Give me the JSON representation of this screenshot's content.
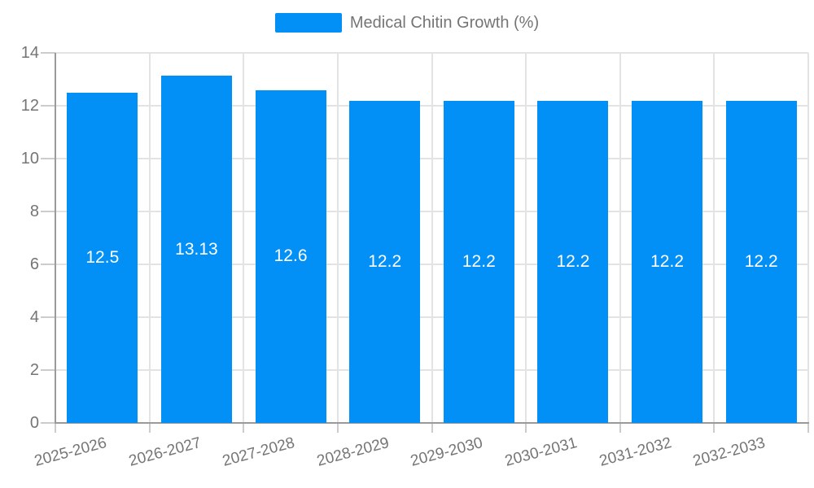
{
  "legend": {
    "label": "Medical Chitin Growth (%)"
  },
  "colors": {
    "bar": "#0290f7",
    "grid": "#e3e3e3",
    "axis": "#9a9a9a",
    "tick": "#cccccc",
    "tick_label": "#757575",
    "data_label": "#ffffff",
    "background": "#ffffff"
  },
  "chart_data": {
    "type": "bar",
    "title": "Medical Chitin Growth (%)",
    "categories": [
      "2025-2026",
      "2026-2027",
      "2027-2028",
      "2028-2029",
      "2029-2030",
      "2030-2031",
      "2031-2032",
      "2032-2033"
    ],
    "series": [
      {
        "name": "Medical Chitin Growth (%)",
        "color": "#0290f7",
        "values": [
          12.5,
          13.13,
          12.6,
          12.2,
          12.2,
          12.2,
          12.2,
          12.2
        ],
        "labels": [
          "12.5",
          "13.13",
          "12.6",
          "12.2",
          "12.2",
          "12.2",
          "12.2",
          "12.2"
        ]
      }
    ],
    "xlabel": "",
    "ylabel": "",
    "ylim": [
      0,
      14
    ],
    "yticks": [
      0,
      2,
      4,
      6,
      8,
      10,
      12,
      14
    ],
    "grid": true,
    "legend_position": "top",
    "bar_labels_inside": true
  }
}
